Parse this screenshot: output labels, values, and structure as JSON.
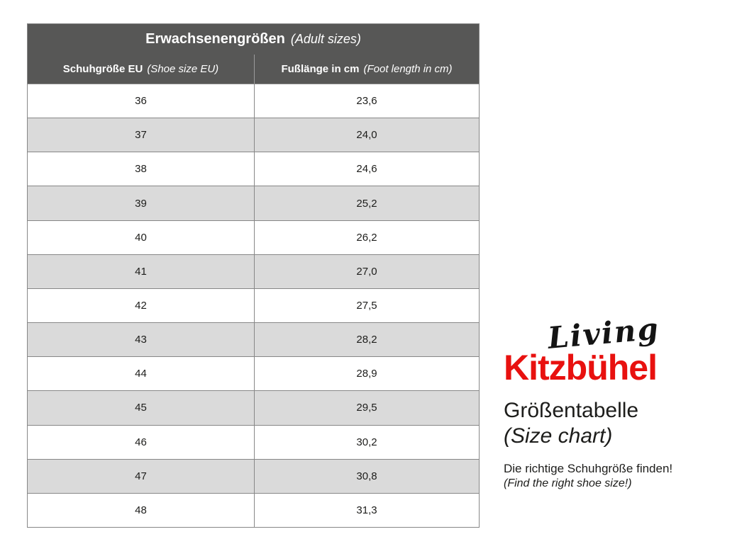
{
  "table": {
    "title": "Erwachsenengrößen",
    "title_translation": "(Adult sizes)",
    "columns": [
      {
        "label": "Schuhgröße EU",
        "label_translation": "(Shoe size EU)"
      },
      {
        "label": "Fußlänge in cm",
        "label_translation": "(Foot length in cm)"
      }
    ],
    "rows": [
      {
        "size_eu": "36",
        "foot_length_cm": "23,6"
      },
      {
        "size_eu": "37",
        "foot_length_cm": "24,0"
      },
      {
        "size_eu": "38",
        "foot_length_cm": "24,6"
      },
      {
        "size_eu": "39",
        "foot_length_cm": "25,2"
      },
      {
        "size_eu": "40",
        "foot_length_cm": "26,2"
      },
      {
        "size_eu": "41",
        "foot_length_cm": "27,0"
      },
      {
        "size_eu": "42",
        "foot_length_cm": "27,5"
      },
      {
        "size_eu": "43",
        "foot_length_cm": "28,2"
      },
      {
        "size_eu": "44",
        "foot_length_cm": "28,9"
      },
      {
        "size_eu": "45",
        "foot_length_cm": "29,5"
      },
      {
        "size_eu": "46",
        "foot_length_cm": "30,2"
      },
      {
        "size_eu": "47",
        "foot_length_cm": "30,8"
      },
      {
        "size_eu": "48",
        "foot_length_cm": "31,3"
      }
    ]
  },
  "brand": {
    "script_word": "Living",
    "name": "Kitzbühel"
  },
  "caption": {
    "title_de": "Größentabelle",
    "title_en": "(Size chart)",
    "subtitle_de": "Die richtige Schuhgröße finden!",
    "subtitle_en": "(Find the right shoe size!)"
  },
  "colors": {
    "header_bg": "#575756",
    "row_alt_bg": "#dadada",
    "border": "#878787",
    "brand_red": "#e8110f",
    "text": "#1d1d1b"
  },
  "chart_data": {
    "type": "table",
    "title": "Erwachsenengrößen (Adult sizes)",
    "columns": [
      "Schuhgröße EU (Shoe size EU)",
      "Fußlänge in cm (Foot length in cm)"
    ],
    "rows": [
      [
        "36",
        "23,6"
      ],
      [
        "37",
        "24,0"
      ],
      [
        "38",
        "24,6"
      ],
      [
        "39",
        "25,2"
      ],
      [
        "40",
        "26,2"
      ],
      [
        "41",
        "27,0"
      ],
      [
        "42",
        "27,5"
      ],
      [
        "43",
        "28,2"
      ],
      [
        "44",
        "28,9"
      ],
      [
        "45",
        "29,5"
      ],
      [
        "46",
        "30,2"
      ],
      [
        "47",
        "30,8"
      ],
      [
        "48",
        "31,3"
      ]
    ],
    "layout": {
      "row_striping": true,
      "header_style": "dark",
      "legend": "none"
    }
  }
}
